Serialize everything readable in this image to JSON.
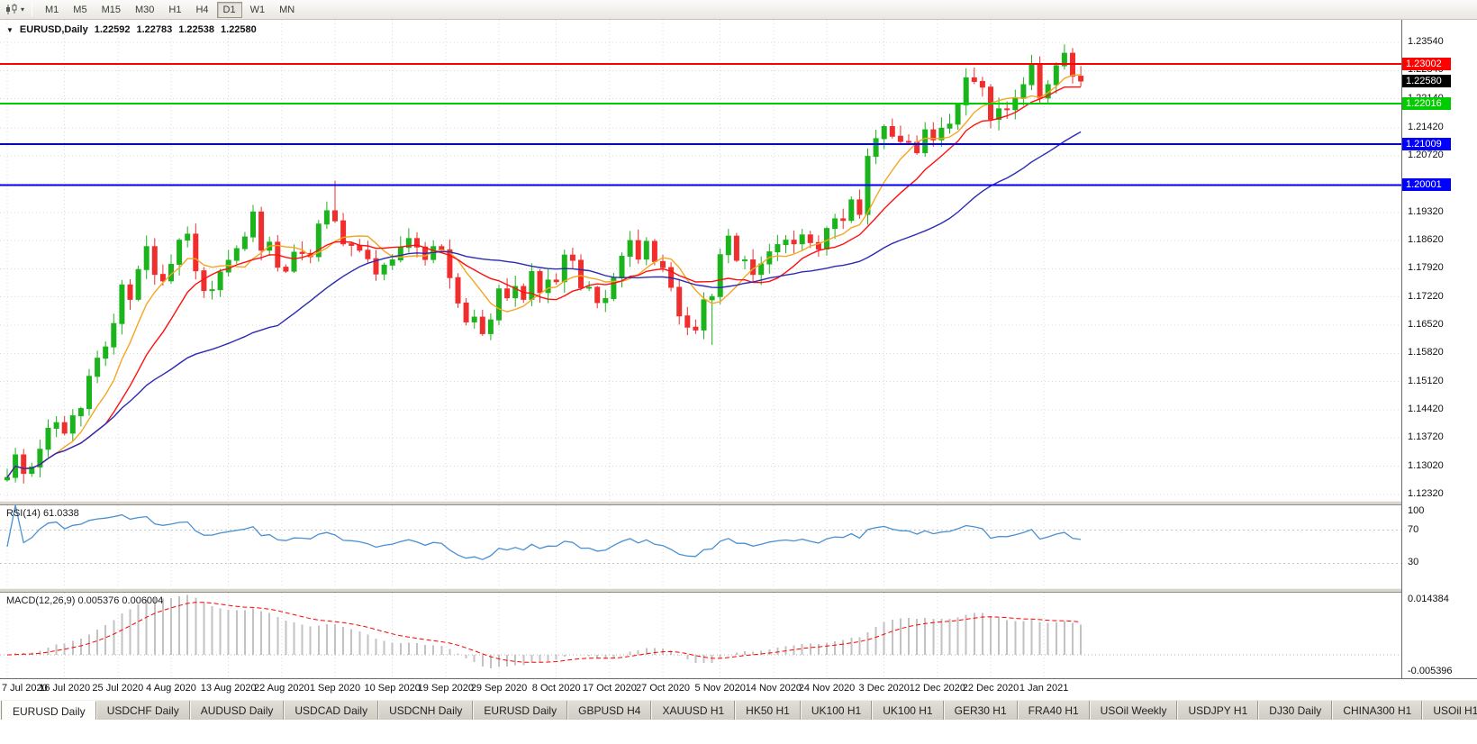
{
  "toolbar": {
    "timeframes": [
      {
        "label": "M1",
        "active": false
      },
      {
        "label": "M5",
        "active": false
      },
      {
        "label": "M15",
        "active": false
      },
      {
        "label": "M30",
        "active": false
      },
      {
        "label": "H1",
        "active": false
      },
      {
        "label": "H4",
        "active": false
      },
      {
        "label": "D1",
        "active": true
      },
      {
        "label": "W1",
        "active": false
      },
      {
        "label": "MN",
        "active": false
      }
    ]
  },
  "chart": {
    "title": {
      "symbol": "EURUSD,Daily",
      "open": "1.22592",
      "high": "1.22783",
      "low": "1.22538",
      "close": "1.22580"
    }
  },
  "chart_data": {
    "type": "candlestick",
    "symbol": "EURUSD",
    "timeframe": "Daily",
    "price_max": 1.241,
    "price_min": 1.1216,
    "first_open": 1.1268,
    "closes": [
      1.1274,
      1.133,
      1.1284,
      1.13,
      1.1344,
      1.1396,
      1.141,
      1.1384,
      1.1427,
      1.1445,
      1.1525,
      1.157,
      1.1598,
      1.1656,
      1.1752,
      1.1716,
      1.179,
      1.1847,
      1.1778,
      1.1762,
      1.1803,
      1.1863,
      1.1878,
      1.1787,
      1.1738,
      1.174,
      1.1784,
      1.1813,
      1.1842,
      1.1871,
      1.1933,
      1.1838,
      1.1858,
      1.1796,
      1.1786,
      1.1833,
      1.183,
      1.1822,
      1.1903,
      1.1936,
      1.1911,
      1.1854,
      1.185,
      1.1838,
      1.1817,
      1.1779,
      1.1801,
      1.1814,
      1.1845,
      1.1867,
      1.1846,
      1.1815,
      1.1847,
      1.1839,
      1.177,
      1.1707,
      1.166,
      1.1672,
      1.1631,
      1.1665,
      1.1742,
      1.172,
      1.1748,
      1.1716,
      1.1785,
      1.1733,
      1.1764,
      1.176,
      1.1826,
      1.1813,
      1.1745,
      1.1746,
      1.1708,
      1.1718,
      1.177,
      1.1823,
      1.1862,
      1.1816,
      1.186,
      1.181,
      1.1795,
      1.1746,
      1.1675,
      1.1647,
      1.164,
      1.1715,
      1.1723,
      1.1827,
      1.1873,
      1.1813,
      1.1814,
      1.1778,
      1.1804,
      1.1834,
      1.1852,
      1.1863,
      1.1854,
      1.1876,
      1.1857,
      1.1841,
      1.1892,
      1.1916,
      1.1912,
      1.1963,
      1.1927,
      1.2071,
      1.2115,
      1.2145,
      1.2121,
      1.2108,
      1.2106,
      1.208,
      1.2137,
      1.2112,
      1.2141,
      1.2151,
      1.2199,
      1.2266,
      1.2257,
      1.2243,
      1.2163,
      1.2189,
      1.2187,
      1.2215,
      1.2249,
      1.2301,
      1.2216,
      1.2249,
      1.2296,
      1.2327,
      1.227,
      1.2258
    ],
    "wick_overrides": {
      "40": {
        "high": 1.2011
      },
      "86": {
        "low": 1.1603
      },
      "129": {
        "high": 1.2349
      }
    },
    "colors": {
      "bull": "#1cb41c",
      "bear": "#f02e2e",
      "grid": "#d9d9d9"
    },
    "moving_averages": [
      {
        "period": 7,
        "color": "#f5a623"
      },
      {
        "period": 13,
        "color": "#ff1010"
      },
      {
        "period": 34,
        "color": "#2b2bb4"
      }
    ],
    "hlines": [
      {
        "label": "1.23002",
        "price": 1.23002,
        "color": "#ff0000",
        "width": 2
      },
      {
        "label": "1.22016",
        "price": 1.22016,
        "color": "#00cc00",
        "width": 2
      },
      {
        "label": "1.21009",
        "price": 1.21009,
        "color": "#0000ff",
        "width": 2
      },
      {
        "label": "1.20001",
        "price": 1.20001,
        "color": "#0000ff",
        "width": 2
      }
    ],
    "current_price": {
      "label": "1.22580",
      "price": 1.2258,
      "color": "#000000"
    },
    "price_ticks": [
      "1.23540",
      "1.22840",
      "1.22140",
      "1.21420",
      "1.20720",
      "1.20020",
      "1.19320",
      "1.18620",
      "1.17920",
      "1.17220",
      "1.16520",
      "1.15820",
      "1.15120",
      "1.14420",
      "1.13720",
      "1.13020",
      "1.12320"
    ],
    "x_ticks": [
      {
        "label": "7 Jul 2020",
        "bar": 0
      },
      {
        "label": "16 Jul 2020",
        "bar": 7
      },
      {
        "label": "25 Jul 2020",
        "bar": 13.5
      },
      {
        "label": "4 Aug 2020",
        "bar": 20
      },
      {
        "label": "13 Aug 2020",
        "bar": 27
      },
      {
        "label": "22 Aug 2020",
        "bar": 33.5
      },
      {
        "label": "1 Sep 2020",
        "bar": 40
      },
      {
        "label": "10 Sep 2020",
        "bar": 47
      },
      {
        "label": "19 Sep 2020",
        "bar": 53.5
      },
      {
        "label": "29 Sep 2020",
        "bar": 60
      },
      {
        "label": "8 Oct 2020",
        "bar": 67
      },
      {
        "label": "17 Oct 2020",
        "bar": 73.5
      },
      {
        "label": "27 Oct 2020",
        "bar": 80
      },
      {
        "label": "5 Nov 2020",
        "bar": 87
      },
      {
        "label": "14 Nov 2020",
        "bar": 93.5
      },
      {
        "label": "24 Nov 2020",
        "bar": 100
      },
      {
        "label": "3 Dec 2020",
        "bar": 107
      },
      {
        "label": "12 Dec 2020",
        "bar": 113.5
      },
      {
        "label": "22 Dec 2020",
        "bar": 120
      },
      {
        "label": "1 Jan 2021",
        "bar": 126.5
      }
    ],
    "indicators": {
      "rsi": {
        "label": "RSI(14) 61.0338",
        "period": 14,
        "value": "61.0338",
        "color": "#4a90d2",
        "levels": [
          70,
          30
        ],
        "scale_labels": [
          {
            "text": "100",
            "value": 100
          },
          {
            "text": "70",
            "value": 70
          },
          {
            "text": "30",
            "value": 30
          }
        ]
      },
      "macd": {
        "label": "MACD(12,26,9) 0.005376 0.006004",
        "fast": 12,
        "slow": 26,
        "signal": 9,
        "value_main": "0.005376",
        "value_signal": "0.006004",
        "axis_max": "0.014384",
        "axis_min": "-0.005396",
        "hist_color": "#c2c2c2",
        "signal_color": "#ff0000"
      }
    }
  },
  "bottom_tabs": {
    "items": [
      {
        "label": "EURUSD Daily",
        "active": true
      },
      {
        "label": "USDCHF Daily",
        "active": false
      },
      {
        "label": "AUDUSD Daily",
        "active": false
      },
      {
        "label": "USDCAD Daily",
        "active": false
      },
      {
        "label": "USDCNH Daily",
        "active": false
      },
      {
        "label": "EURUSD Daily",
        "active": false
      },
      {
        "label": "GBPUSD H4",
        "active": false
      },
      {
        "label": "XAUUSD H1",
        "active": false
      },
      {
        "label": "HK50 H1",
        "active": false
      },
      {
        "label": "UK100 H1",
        "active": false
      },
      {
        "label": "UK100 H1",
        "active": false
      },
      {
        "label": "GER30 H1",
        "active": false
      },
      {
        "label": "FRA40 H1",
        "active": false
      },
      {
        "label": "USOil Weekly",
        "active": false
      },
      {
        "label": "USDJPY H1",
        "active": false
      },
      {
        "label": "DJ30 Daily",
        "active": false
      },
      {
        "label": "CHINA300 H1",
        "active": false
      },
      {
        "label": "USOil H1",
        "active": false
      }
    ]
  }
}
